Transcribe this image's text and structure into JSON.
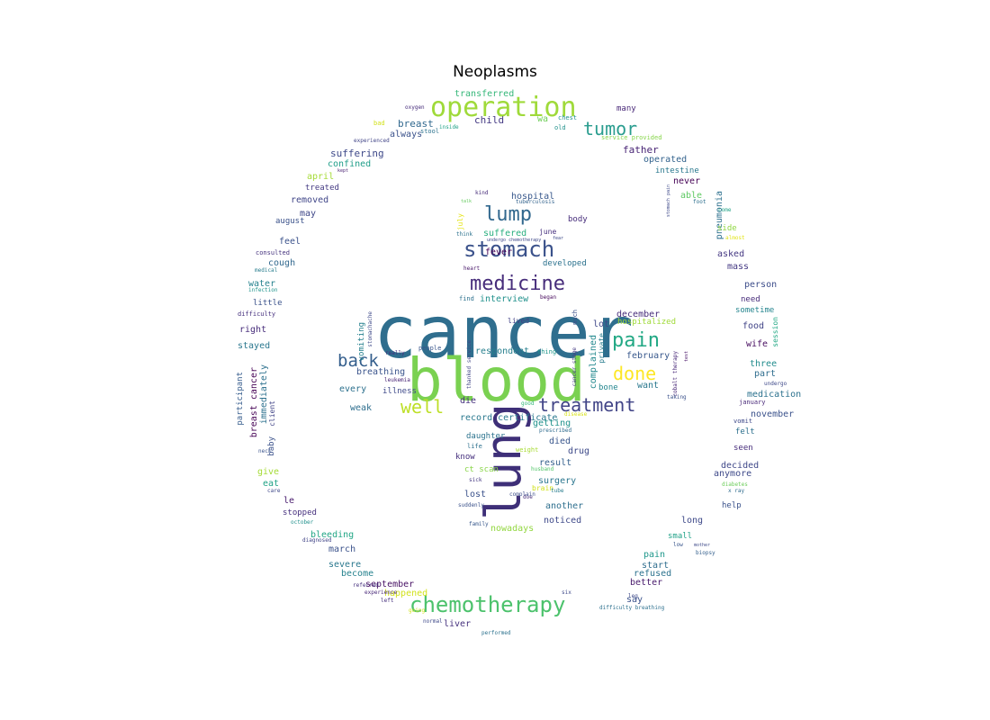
{
  "title": "Neoplasms",
  "words": [
    {
      "t": "cancer",
      "c": "#2f6e8e"
    },
    {
      "t": "blood",
      "c": "#7ad151"
    },
    {
      "t": "lung",
      "c": "#3e2f78"
    },
    {
      "t": "operation",
      "c": "#9fda3a"
    },
    {
      "t": "chemotherapy",
      "c": "#4cc26c"
    },
    {
      "t": "stomach",
      "c": "#3b528b"
    },
    {
      "t": "medicine",
      "c": "#472d7b"
    },
    {
      "t": "lump",
      "c": "#31688e"
    },
    {
      "t": "tumor",
      "c": "#2a9d8f"
    },
    {
      "t": "pain",
      "c": "#22a884"
    },
    {
      "t": "treatment",
      "c": "#414487"
    },
    {
      "t": "well",
      "c": "#bddf26"
    },
    {
      "t": "done",
      "c": "#fde725"
    },
    {
      "t": "back",
      "c": "#355f8d"
    },
    {
      "t": "transferred",
      "c": "#35b779"
    },
    {
      "t": "oxygen",
      "c": "#472d7b"
    },
    {
      "t": "many",
      "c": "#482878"
    },
    {
      "t": "breast",
      "c": "#31688e"
    },
    {
      "t": "child",
      "c": "#443983"
    },
    {
      "t": "wa",
      "c": "#6ece58"
    },
    {
      "t": "chest",
      "c": "#21918c"
    },
    {
      "t": "old",
      "c": "#21918c"
    },
    {
      "t": "bad",
      "c": "#d2e21b"
    },
    {
      "t": "inside",
      "c": "#1fa187"
    },
    {
      "t": "stool",
      "c": "#2c728e"
    },
    {
      "t": "always",
      "c": "#3b528b"
    },
    {
      "t": "experienced",
      "c": "#414487"
    },
    {
      "t": "service provided",
      "c": "#86d549"
    },
    {
      "t": "father",
      "c": "#482475"
    },
    {
      "t": "suffering",
      "c": "#3e4989"
    },
    {
      "t": "operated",
      "c": "#33638d"
    },
    {
      "t": "confined",
      "c": "#1f9e89"
    },
    {
      "t": "intestine",
      "c": "#2a788e"
    },
    {
      "t": "kept",
      "c": "#481f70"
    },
    {
      "t": "april",
      "c": "#a5db36"
    },
    {
      "t": "never",
      "c": "#440154"
    },
    {
      "t": "treated",
      "c": "#443a83"
    },
    {
      "t": "stomach pain",
      "c": "#3e4989"
    },
    {
      "t": "removed",
      "c": "#404688"
    },
    {
      "t": "able",
      "c": "#5ec962"
    },
    {
      "t": "kind",
      "c": "#472c7a"
    },
    {
      "t": "hospital",
      "c": "#38588c"
    },
    {
      "t": "pneumonia",
      "c": "#2d708e"
    },
    {
      "t": "foot",
      "c": "#2e6f8e"
    },
    {
      "t": "talk",
      "c": "#65cb5e"
    },
    {
      "t": "tuberculosis",
      "c": "#33638d"
    },
    {
      "t": "may",
      "c": "#3f4788"
    },
    {
      "t": "come",
      "c": "#20a386"
    },
    {
      "t": "august",
      "c": "#3b528b"
    },
    {
      "t": "july",
      "c": "#e5e419"
    },
    {
      "t": "body",
      "c": "#472d7b"
    },
    {
      "t": "side",
      "c": "#90d743"
    },
    {
      "t": "think",
      "c": "#2c728e"
    },
    {
      "t": "suffered",
      "c": "#29af7f"
    },
    {
      "t": "june",
      "c": "#46307e"
    },
    {
      "t": "almost",
      "c": "#e2e418"
    },
    {
      "t": "undergo chemotherapy",
      "c": "#3f4889"
    },
    {
      "t": "fear",
      "c": "#3e4a89"
    },
    {
      "t": "feel",
      "c": "#3b528b"
    },
    {
      "t": "consulted",
      "c": "#46337e"
    },
    {
      "t": "fever",
      "c": "#440154"
    },
    {
      "t": "developed",
      "c": "#2c728e"
    },
    {
      "t": "asked",
      "c": "#453882"
    },
    {
      "t": "cough",
      "c": "#31688e"
    },
    {
      "t": "heart",
      "c": "#481769"
    },
    {
      "t": "mass",
      "c": "#443983"
    },
    {
      "t": "medical",
      "c": "#287d8e"
    },
    {
      "t": "water",
      "c": "#26828e"
    },
    {
      "t": "person",
      "c": "#3d4d8a"
    },
    {
      "t": "infection",
      "c": "#1f948c"
    },
    {
      "t": "find",
      "c": "#2d718e"
    },
    {
      "t": "began",
      "c": "#46085c"
    },
    {
      "t": "need",
      "c": "#472c7a"
    },
    {
      "t": "interview",
      "c": "#21918c"
    },
    {
      "t": "little",
      "c": "#3b528b"
    },
    {
      "t": "sometime",
      "c": "#25858e"
    },
    {
      "t": "december",
      "c": "#472c7a"
    },
    {
      "t": "difficulty",
      "c": "#46307e"
    },
    {
      "t": "much",
      "c": "#3c4f8a"
    },
    {
      "t": "hospitalized",
      "c": "#a0da39"
    },
    {
      "t": "session",
      "c": "#22a884"
    },
    {
      "t": "lived",
      "c": "#424086"
    },
    {
      "t": "food",
      "c": "#414487"
    },
    {
      "t": "right",
      "c": "#472d7b"
    },
    {
      "t": "lot",
      "c": "#3f4889"
    },
    {
      "t": "stomachache",
      "c": "#3e4989"
    },
    {
      "t": "wife",
      "c": "#470d60"
    },
    {
      "t": "vomiting",
      "c": "#26818e"
    },
    {
      "t": "stayed",
      "c": "#2a778e"
    },
    {
      "t": "people",
      "c": "#39568c"
    },
    {
      "t": "thing",
      "c": "#1f978b"
    },
    {
      "t": "respondent",
      "c": "#277f8e"
    },
    {
      "t": "complained",
      "c": "#23898e"
    },
    {
      "t": "february",
      "c": "#38588c"
    },
    {
      "t": "three",
      "c": "#228c8d"
    },
    {
      "t": "participant",
      "c": "#365c8d"
    },
    {
      "t": "breast cancer",
      "c": "#440154"
    },
    {
      "t": "immediately",
      "c": "#2d718e"
    },
    {
      "t": "really",
      "c": "#46307e"
    },
    {
      "t": "part",
      "c": "#2e6d8e"
    },
    {
      "t": "breathing",
      "c": "#3a548c"
    },
    {
      "t": "leukemia",
      "c": "#482475"
    },
    {
      "t": "thanked service",
      "c": "#414487"
    },
    {
      "t": "cancer stage",
      "c": "#443983"
    },
    {
      "t": "private",
      "c": "#287c8e"
    },
    {
      "t": "cobalt therapy",
      "c": "#482878"
    },
    {
      "t": "test",
      "c": "#481467"
    },
    {
      "t": "bone",
      "c": "#24868e"
    },
    {
      "t": "undergo",
      "c": "#3e4989"
    },
    {
      "t": "every",
      "c": "#2d718e"
    },
    {
      "t": "illness",
      "c": "#3e4989"
    },
    {
      "t": "want",
      "c": "#2a788e"
    },
    {
      "t": "medication",
      "c": "#2c728e"
    },
    {
      "t": "die",
      "c": "#46307e"
    },
    {
      "t": "good",
      "c": "#35b779"
    },
    {
      "t": "taking",
      "c": "#3b528b"
    },
    {
      "t": "january",
      "c": "#482878"
    },
    {
      "t": "weak",
      "c": "#2e6e8e"
    },
    {
      "t": "november",
      "c": "#3b528b"
    },
    {
      "t": "client",
      "c": "#414487"
    },
    {
      "t": "record certificate",
      "c": "#2a788e"
    },
    {
      "t": "disease",
      "c": "#d8e219"
    },
    {
      "t": "getting",
      "c": "#20928c"
    },
    {
      "t": "prescribed",
      "c": "#2f6b8e"
    },
    {
      "t": "vomit",
      "c": "#3e4989"
    },
    {
      "t": "felt",
      "c": "#2d708e"
    },
    {
      "t": "baby",
      "c": "#3b528b"
    },
    {
      "t": "daughter",
      "c": "#2c738e"
    },
    {
      "t": "died",
      "c": "#39568c"
    },
    {
      "t": "drug",
      "c": "#3e4a89"
    },
    {
      "t": "life",
      "c": "#2d718e"
    },
    {
      "t": "weight",
      "c": "#a8db34"
    },
    {
      "t": "seen",
      "c": "#472d7b"
    },
    {
      "t": "neck",
      "c": "#3a548c"
    },
    {
      "t": "know",
      "c": "#46307e"
    },
    {
      "t": "result",
      "c": "#35608d"
    },
    {
      "t": "decided",
      "c": "#3f4889"
    },
    {
      "t": "give",
      "c": "#a5db36"
    },
    {
      "t": "ct scan",
      "c": "#89d548"
    },
    {
      "t": "husband",
      "c": "#52c569"
    },
    {
      "t": "surgery",
      "c": "#2a768e"
    },
    {
      "t": "anymore",
      "c": "#3e4989"
    },
    {
      "t": "eat",
      "c": "#20a386"
    },
    {
      "t": "sick",
      "c": "#453781"
    },
    {
      "t": "brain",
      "c": "#d0e11c"
    },
    {
      "t": "diabetes",
      "c": "#6ccd5a"
    },
    {
      "t": "care",
      "c": "#3f4889"
    },
    {
      "t": "lost",
      "c": "#3b528b"
    },
    {
      "t": "tube",
      "c": "#287c8e"
    },
    {
      "t": "x ray",
      "c": "#2f6c8e"
    },
    {
      "t": "le",
      "c": "#481b6d"
    },
    {
      "t": "doe",
      "c": "#472c7a"
    },
    {
      "t": "complain",
      "c": "#3d4d8a"
    },
    {
      "t": "another",
      "c": "#2e6f8e"
    },
    {
      "t": "help",
      "c": "#3b528b"
    },
    {
      "t": "suddenly",
      "c": "#3b528b"
    },
    {
      "t": "stopped",
      "c": "#46307e"
    },
    {
      "t": "october",
      "c": "#21918c"
    },
    {
      "t": "noticed",
      "c": "#3e4989"
    },
    {
      "t": "long",
      "c": "#3e4989"
    },
    {
      "t": "family",
      "c": "#38588c"
    },
    {
      "t": "bleeding",
      "c": "#21a685"
    },
    {
      "t": "nowadays",
      "c": "#93d741"
    },
    {
      "t": "diagnosed",
      "c": "#414487"
    },
    {
      "t": "small",
      "c": "#1fa187"
    },
    {
      "t": "low",
      "c": "#39568c"
    },
    {
      "t": "mother",
      "c": "#3e4a89"
    },
    {
      "t": "march",
      "c": "#3b528b"
    },
    {
      "t": "pain",
      "c": "#1f978b"
    },
    {
      "t": "biopsy",
      "c": "#35608d"
    },
    {
      "t": "severe",
      "c": "#2a788e"
    },
    {
      "t": "start",
      "c": "#2e6d8e"
    },
    {
      "t": "become",
      "c": "#26828e"
    },
    {
      "t": "refused",
      "c": "#2c728e"
    },
    {
      "t": "september",
      "c": "#471164"
    },
    {
      "t": "better",
      "c": "#481a6c"
    },
    {
      "t": "referred",
      "c": "#46307e"
    },
    {
      "t": "happened",
      "c": "#d2e21b"
    },
    {
      "t": "six",
      "c": "#3e4989"
    },
    {
      "t": "experience",
      "c": "#482878"
    },
    {
      "t": "left",
      "c": "#46307e"
    },
    {
      "t": "say",
      "c": "#3b528b"
    },
    {
      "t": "leg",
      "c": "#3e4989"
    },
    {
      "t": "going",
      "c": "#d0e11c"
    },
    {
      "t": "difficulty breathing",
      "c": "#2d708e"
    },
    {
      "t": "liver",
      "c": "#46327e"
    },
    {
      "t": "normal",
      "c": "#3e4989"
    },
    {
      "t": "performed",
      "c": "#2c728e"
    }
  ]
}
